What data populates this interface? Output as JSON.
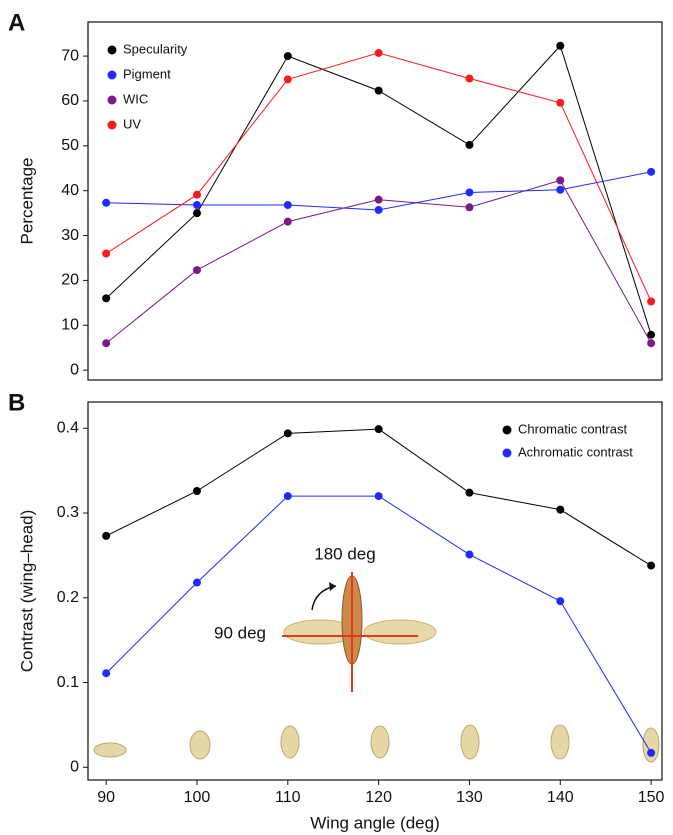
{
  "chart_data": [
    {
      "type": "line",
      "panel_label": "A",
      "ylabel": "Percentage",
      "x": [
        90,
        100,
        110,
        120,
        130,
        140,
        150
      ],
      "xlim": [
        88,
        151.2
      ],
      "ylim": [
        -2.2,
        77.6
      ],
      "yticks": [
        0,
        10,
        20,
        30,
        40,
        50,
        60,
        70
      ],
      "legend": "upper left",
      "series": [
        {
          "name": "Specularity",
          "color": "#000000",
          "values": [
            16.0,
            35.0,
            70.0,
            62.3,
            50.2,
            72.3,
            7.9
          ]
        },
        {
          "name": "Pigment",
          "color": "#1f2bff",
          "values": [
            37.3,
            36.8,
            36.8,
            35.7,
            39.6,
            40.2,
            44.2
          ]
        },
        {
          "name": "WIC",
          "color": "#7b1a86",
          "values": [
            6.0,
            22.3,
            33.1,
            38.0,
            36.3,
            42.3,
            6.0
          ]
        },
        {
          "name": "UV",
          "color": "#ff1a1a",
          "values": [
            26.0,
            39.1,
            64.8,
            70.7,
            65.0,
            59.6,
            15.3
          ]
        }
      ]
    },
    {
      "type": "line",
      "panel_label": "B",
      "xlabel": "Wing angle (deg)",
      "ylabel": "Contrast (wing–head)",
      "x": [
        90,
        100,
        110,
        120,
        130,
        140,
        150
      ],
      "xlim": [
        88,
        151.2
      ],
      "xticks": [
        90,
        100,
        110,
        120,
        130,
        140,
        150
      ],
      "ylim": [
        -0.015,
        0.431
      ],
      "yticks": [
        0,
        0.1,
        0.2,
        0.3,
        0.4
      ],
      "legend": "upper right",
      "annotations": [
        "180 deg",
        "90 deg"
      ],
      "series": [
        {
          "name": "Chromatic contrast",
          "color": "#000000",
          "values": [
            0.273,
            0.326,
            0.394,
            0.399,
            0.324,
            0.304,
            0.238
          ]
        },
        {
          "name": "Achromatic contrast",
          "color": "#1f2bff",
          "values": [
            0.111,
            0.218,
            0.32,
            0.32,
            0.251,
            0.196,
            0.017
          ]
        }
      ]
    }
  ]
}
